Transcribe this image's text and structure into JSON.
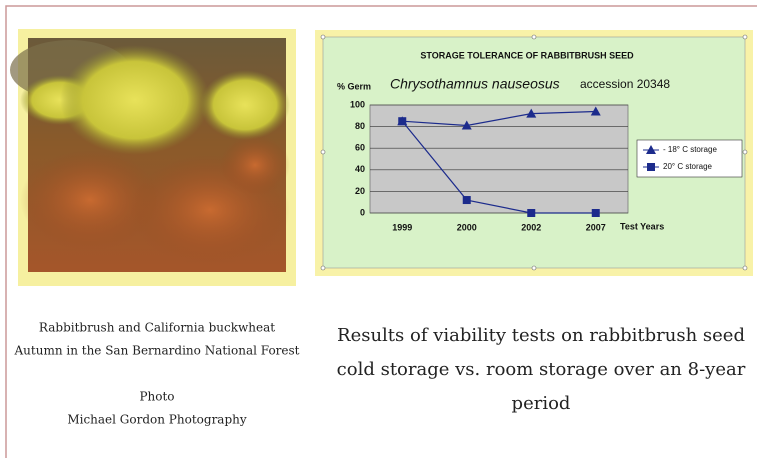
{
  "chart_data": {
    "type": "line",
    "title": "STORAGE TOLERANCE OF RABBITBRUSH SEED",
    "ylabel": "% Germ",
    "species": "Chrysothamnus nauseosus",
    "accession": "accession 20348",
    "xlabel": "Test Years",
    "categories": [
      "1999",
      "2000",
      "2002",
      "2007"
    ],
    "series": [
      {
        "name": "- 18° C storage",
        "color": "#1c2b8c",
        "marker": "triangle",
        "values": [
          85,
          81,
          92,
          94
        ]
      },
      {
        "name": "20° C storage",
        "color": "#1c2b8c",
        "marker": "square",
        "values": [
          85,
          12,
          0,
          0
        ]
      }
    ],
    "ylim": [
      0,
      100
    ],
    "yticks": [
      0,
      20,
      40,
      60,
      80,
      100
    ],
    "grid": true,
    "legend": "right"
  },
  "photo_caption": [
    "Rabbitbrush and California buckwheat",
    "Autumn in the San Bernardino National Forest"
  ],
  "credit": [
    "Photo",
    "Michael Gordon Photography"
  ],
  "slide_text": [
    "Results of viability tests on rabbitbrush seed",
    "cold storage vs. room storage over an 8-year",
    "period"
  ]
}
